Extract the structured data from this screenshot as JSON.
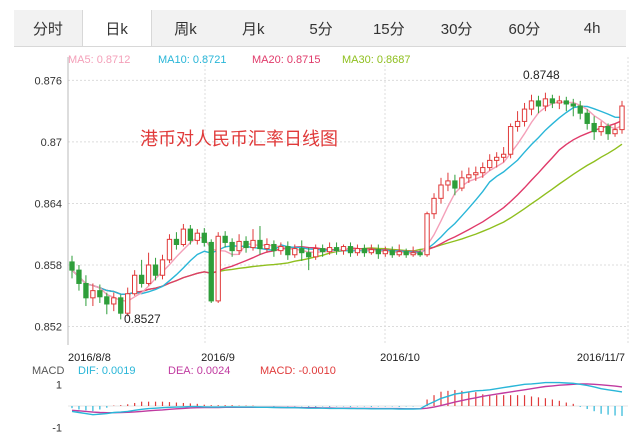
{
  "tabs": [
    {
      "label": "分时",
      "active": false
    },
    {
      "label": "日k",
      "active": true
    },
    {
      "label": "周k",
      "active": false
    },
    {
      "label": "月k",
      "active": false
    },
    {
      "label": "5分",
      "active": false
    },
    {
      "label": "15分",
      "active": false
    },
    {
      "label": "30分",
      "active": false
    },
    {
      "label": "60分",
      "active": false
    },
    {
      "label": "4h",
      "active": false
    }
  ],
  "legend": [
    {
      "label": "MA5: 0.8712",
      "color": "#f4a0b9"
    },
    {
      "label": "MA10: 0.8721",
      "color": "#29b6d8"
    },
    {
      "label": "MA20: 0.8715",
      "color": "#e03a6a"
    },
    {
      "label": "MA30: 0.8687",
      "color": "#8fbf1e"
    }
  ],
  "macd_legend": [
    {
      "label": "MACD",
      "color": "#555555"
    },
    {
      "label": "DIF: 0.0019",
      "color": "#29b6d8"
    },
    {
      "label": "DEA: 0.0024",
      "color": "#c03aa0"
    },
    {
      "label": "MACD: -0.0010",
      "color": "#e03a3a"
    }
  ],
  "chart_data": {
    "type": "candlestick",
    "title": "港币对人民币汇率日线图",
    "title_color": "#e03a3a",
    "y_ticks": [
      "0.876",
      "0.87",
      "0.864",
      "0.858",
      "0.852"
    ],
    "ylim": [
      0.8502,
      0.8775
    ],
    "x_labels": [
      "2016/8/8",
      "2016/9",
      "2016/10",
      "2016/11/7"
    ],
    "annotations": {
      "high": "0.8748",
      "low": "0.8527"
    },
    "up_color": "#e03a3a",
    "down_color": "#2e9e3a",
    "candles": [
      [
        0.8583,
        0.8575,
        0.8589,
        0.8567
      ],
      [
        0.8575,
        0.8562,
        0.858,
        0.8555
      ],
      [
        0.8562,
        0.8548,
        0.857,
        0.854
      ],
      [
        0.8548,
        0.8555,
        0.8562,
        0.854
      ],
      [
        0.8555,
        0.8549,
        0.8561,
        0.8543
      ],
      [
        0.8549,
        0.8542,
        0.8553,
        0.8532
      ],
      [
        0.8542,
        0.8548,
        0.8553,
        0.8535
      ],
      [
        0.8548,
        0.8533,
        0.8551,
        0.8527
      ],
      [
        0.8533,
        0.8552,
        0.8558,
        0.853
      ],
      [
        0.8552,
        0.857,
        0.8575,
        0.855
      ],
      [
        0.857,
        0.8562,
        0.8585,
        0.8558
      ],
      [
        0.8562,
        0.858,
        0.8592,
        0.856
      ],
      [
        0.858,
        0.857,
        0.8587,
        0.8565
      ],
      [
        0.857,
        0.8585,
        0.859,
        0.8566
      ],
      [
        0.8585,
        0.8605,
        0.861,
        0.8582
      ],
      [
        0.8605,
        0.86,
        0.8612,
        0.8595
      ],
      [
        0.86,
        0.8615,
        0.862,
        0.8598
      ],
      [
        0.8615,
        0.8604,
        0.8619,
        0.86
      ],
      [
        0.8604,
        0.8611,
        0.8615,
        0.86
      ],
      [
        0.8611,
        0.8602,
        0.8616,
        0.8598
      ],
      [
        0.8602,
        0.8545,
        0.8605,
        0.8543
      ],
      [
        0.8545,
        0.8608,
        0.8612,
        0.8543
      ],
      [
        0.8608,
        0.8602,
        0.8613,
        0.8597
      ],
      [
        0.8602,
        0.8594,
        0.8606,
        0.8588
      ],
      [
        0.8594,
        0.8603,
        0.861,
        0.859
      ],
      [
        0.8603,
        0.8597,
        0.8608,
        0.8592
      ],
      [
        0.8597,
        0.8604,
        0.8615,
        0.8594
      ],
      [
        0.8604,
        0.8596,
        0.8618,
        0.859
      ],
      [
        0.8596,
        0.86,
        0.8606,
        0.8592
      ],
      [
        0.86,
        0.8594,
        0.8604,
        0.8588
      ],
      [
        0.8594,
        0.8598,
        0.8602,
        0.859
      ],
      [
        0.8598,
        0.859,
        0.8603,
        0.8585
      ],
      [
        0.859,
        0.8596,
        0.86,
        0.8587
      ],
      [
        0.8596,
        0.8592,
        0.8604,
        0.8584
      ],
      [
        0.8592,
        0.8588,
        0.8597,
        0.8575
      ],
      [
        0.8588,
        0.8596,
        0.86,
        0.8585
      ],
      [
        0.8596,
        0.8593,
        0.86,
        0.8588
      ],
      [
        0.8593,
        0.8597,
        0.8602,
        0.859
      ],
      [
        0.8597,
        0.8594,
        0.8602,
        0.859
      ],
      [
        0.8594,
        0.8598,
        0.86,
        0.859
      ],
      [
        0.8598,
        0.8592,
        0.8602,
        0.8588
      ],
      [
        0.8592,
        0.8596,
        0.86,
        0.8589
      ],
      [
        0.8596,
        0.8592,
        0.86,
        0.8588
      ],
      [
        0.8592,
        0.8595,
        0.86,
        0.859
      ],
      [
        0.8595,
        0.8591,
        0.86,
        0.8586
      ],
      [
        0.8591,
        0.8594,
        0.8598,
        0.8588
      ],
      [
        0.8594,
        0.859,
        0.8598,
        0.8587
      ],
      [
        0.859,
        0.8593,
        0.86,
        0.8588
      ],
      [
        0.8593,
        0.859,
        0.8596,
        0.8587
      ],
      [
        0.859,
        0.8592,
        0.8598,
        0.8588
      ],
      [
        0.8592,
        0.859,
        0.8595,
        0.8588
      ],
      [
        0.859,
        0.863,
        0.8632,
        0.8588
      ],
      [
        0.863,
        0.8645,
        0.865,
        0.8625
      ],
      [
        0.8645,
        0.8658,
        0.8665,
        0.864
      ],
      [
        0.8658,
        0.8662,
        0.867,
        0.8652
      ],
      [
        0.8662,
        0.8655,
        0.8668,
        0.8648
      ],
      [
        0.8655,
        0.8665,
        0.8672,
        0.8652
      ],
      [
        0.8665,
        0.8668,
        0.8675,
        0.866
      ],
      [
        0.8668,
        0.867,
        0.8676,
        0.8662
      ],
      [
        0.867,
        0.8675,
        0.868,
        0.8665
      ],
      [
        0.8675,
        0.8682,
        0.8688,
        0.8672
      ],
      [
        0.8682,
        0.8685,
        0.869,
        0.8675
      ],
      [
        0.8685,
        0.8688,
        0.8695,
        0.868
      ],
      [
        0.8688,
        0.8715,
        0.8718,
        0.8684
      ],
      [
        0.8715,
        0.872,
        0.873,
        0.871
      ],
      [
        0.872,
        0.8732,
        0.8738,
        0.8715
      ],
      [
        0.8732,
        0.874,
        0.8746,
        0.8726
      ],
      [
        0.874,
        0.8735,
        0.8745,
        0.8728
      ],
      [
        0.8735,
        0.8742,
        0.8748,
        0.873
      ],
      [
        0.8742,
        0.8738,
        0.8746,
        0.8733
      ],
      [
        0.8738,
        0.874,
        0.8745,
        0.8732
      ],
      [
        0.874,
        0.8737,
        0.8744,
        0.873
      ],
      [
        0.8737,
        0.8735,
        0.8742,
        0.8725
      ],
      [
        0.8735,
        0.8728,
        0.874,
        0.8722
      ],
      [
        0.8728,
        0.8718,
        0.8732,
        0.8712
      ],
      [
        0.8718,
        0.871,
        0.8725,
        0.8702
      ],
      [
        0.871,
        0.8715,
        0.872,
        0.8706
      ],
      [
        0.8715,
        0.8708,
        0.8718,
        0.8702
      ],
      [
        0.8708,
        0.8712,
        0.8718,
        0.8705
      ],
      [
        0.8712,
        0.8735,
        0.874,
        0.8708
      ]
    ],
    "macd_y_ticks": [
      "1",
      "-1"
    ],
    "macd_ylim": [
      -1.2,
      1.2
    ],
    "dif": [
      -0.25,
      -0.3,
      -0.35,
      -0.4,
      -0.38,
      -0.35,
      -0.3,
      -0.28,
      -0.25,
      -0.2,
      -0.15,
      -0.12,
      -0.1,
      -0.08,
      -0.06,
      -0.05,
      -0.04,
      -0.03,
      -0.03,
      -0.04,
      -0.05,
      -0.05,
      -0.04,
      -0.04,
      -0.05,
      -0.05,
      -0.05,
      -0.06,
      -0.06,
      -0.07,
      -0.07,
      -0.08,
      -0.08,
      -0.09,
      -0.1,
      -0.1,
      -0.1,
      -0.11,
      -0.11,
      -0.11,
      -0.12,
      -0.12,
      -0.12,
      -0.13,
      -0.13,
      -0.13,
      -0.13,
      -0.14,
      -0.14,
      -0.14,
      -0.13,
      0.05,
      0.2,
      0.35,
      0.45,
      0.55,
      0.6,
      0.65,
      0.7,
      0.72,
      0.75,
      0.8,
      0.85,
      0.9,
      0.95,
      1.0,
      1.02,
      1.05,
      1.08,
      1.08,
      1.08,
      1.06,
      1.05,
      1.0,
      0.95,
      0.88,
      0.8,
      0.75,
      0.7,
      0.65
    ],
    "dea": [
      -0.2,
      -0.22,
      -0.25,
      -0.28,
      -0.3,
      -0.31,
      -0.31,
      -0.3,
      -0.29,
      -0.27,
      -0.25,
      -0.22,
      -0.2,
      -0.18,
      -0.15,
      -0.13,
      -0.11,
      -0.09,
      -0.08,
      -0.07,
      -0.07,
      -0.07,
      -0.06,
      -0.06,
      -0.06,
      -0.06,
      -0.06,
      -0.06,
      -0.06,
      -0.06,
      -0.07,
      -0.07,
      -0.07,
      -0.08,
      -0.08,
      -0.08,
      -0.09,
      -0.09,
      -0.1,
      -0.1,
      -0.1,
      -0.11,
      -0.11,
      -0.11,
      -0.12,
      -0.12,
      -0.12,
      -0.12,
      -0.13,
      -0.13,
      -0.13,
      -0.1,
      -0.05,
      0.02,
      0.1,
      0.18,
      0.25,
      0.32,
      0.38,
      0.45,
      0.5,
      0.55,
      0.6,
      0.65,
      0.7,
      0.75,
      0.8,
      0.85,
      0.9,
      0.93,
      0.96,
      0.98,
      1.0,
      1.02,
      1.02,
      1.0,
      0.98,
      0.95,
      0.92,
      0.88
    ],
    "macd_bars": [
      -0.1,
      -0.16,
      -0.2,
      -0.24,
      -0.16,
      -0.08,
      0.02,
      0.04,
      0.08,
      0.14,
      0.2,
      0.2,
      0.2,
      0.2,
      0.18,
      0.16,
      0.14,
      0.12,
      0.1,
      0.06,
      0.04,
      0.04,
      0.04,
      0.04,
      0.02,
      0.02,
      0.02,
      0.0,
      0.0,
      -0.02,
      0.0,
      -0.02,
      -0.02,
      -0.02,
      -0.04,
      -0.04,
      -0.02,
      -0.04,
      -0.02,
      -0.02,
      -0.04,
      -0.02,
      -0.02,
      -0.04,
      -0.02,
      -0.02,
      -0.02,
      -0.04,
      -0.02,
      -0.02,
      0.0,
      0.3,
      0.5,
      0.66,
      0.7,
      0.74,
      0.7,
      0.66,
      0.64,
      0.54,
      0.5,
      0.5,
      0.5,
      0.5,
      0.5,
      0.5,
      0.44,
      0.4,
      0.36,
      0.3,
      0.24,
      0.16,
      0.1,
      -0.04,
      -0.14,
      -0.24,
      -0.36,
      -0.4,
      -0.44,
      -0.46
    ]
  }
}
